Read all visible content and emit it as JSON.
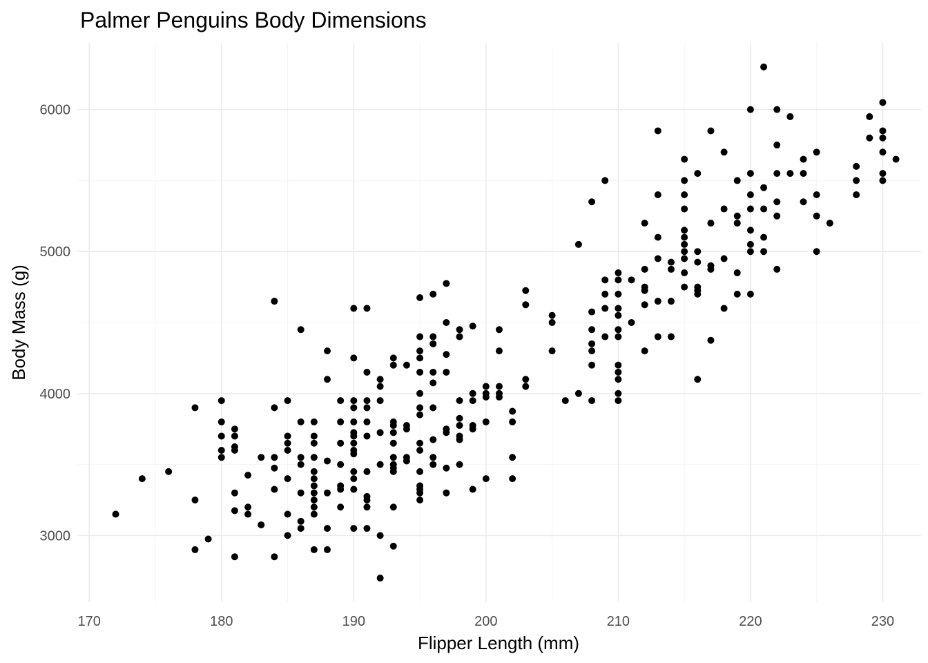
{
  "chart_data": {
    "type": "scatter",
    "title": "Palmer Penguins Body Dimensions",
    "xlabel": "Flipper Length (mm)",
    "ylabel": "Body Mass (g)",
    "xlim": [
      169.1,
      232.9
    ],
    "ylim": [
      2530,
      6470
    ],
    "x_ticks": [
      170,
      180,
      190,
      200,
      210,
      220,
      230
    ],
    "y_ticks": [
      3000,
      4000,
      5000,
      6000
    ],
    "x_tick_labels": [
      "170",
      "180",
      "190",
      "200",
      "210",
      "220",
      "230"
    ],
    "y_tick_labels": [
      "3000",
      "4000",
      "5000",
      "6000"
    ],
    "grid": true,
    "point_color": "#000000",
    "points": [
      [
        172,
        3150
      ],
      [
        174,
        3400
      ],
      [
        176,
        3450
      ],
      [
        178,
        3900
      ],
      [
        178,
        3250
      ],
      [
        178,
        2900
      ],
      [
        179,
        2975
      ],
      [
        180,
        3950
      ],
      [
        180,
        3800
      ],
      [
        180,
        3700
      ],
      [
        180,
        3600
      ],
      [
        180,
        3550
      ],
      [
        181,
        3750
      ],
      [
        181,
        3700
      ],
      [
        181,
        3625
      ],
      [
        181,
        3600
      ],
      [
        181,
        3300
      ],
      [
        181,
        3175
      ],
      [
        181,
        2850
      ],
      [
        182,
        3425
      ],
      [
        182,
        3200
      ],
      [
        182,
        3150
      ],
      [
        183,
        3550
      ],
      [
        183,
        3075
      ],
      [
        184,
        4650
      ],
      [
        184,
        3900
      ],
      [
        184,
        3550
      ],
      [
        184,
        3475
      ],
      [
        184,
        3325
      ],
      [
        184,
        2850
      ],
      [
        185,
        3950
      ],
      [
        185,
        3700
      ],
      [
        185,
        3650
      ],
      [
        185,
        3600
      ],
      [
        185,
        3400
      ],
      [
        185,
        3150
      ],
      [
        185,
        3000
      ],
      [
        186,
        4450
      ],
      [
        186,
        3800
      ],
      [
        186,
        3550
      ],
      [
        186,
        3500
      ],
      [
        186,
        3300
      ],
      [
        186,
        3100
      ],
      [
        186,
        3050
      ],
      [
        187,
        3800
      ],
      [
        187,
        3700
      ],
      [
        187,
        3650
      ],
      [
        187,
        3550
      ],
      [
        187,
        3450
      ],
      [
        187,
        3400
      ],
      [
        187,
        3350
      ],
      [
        187,
        3300
      ],
      [
        187,
        3250
      ],
      [
        187,
        3200
      ],
      [
        187,
        3150
      ],
      [
        187,
        2900
      ],
      [
        188,
        4300
      ],
      [
        188,
        4100
      ],
      [
        188,
        3525
      ],
      [
        188,
        3300
      ],
      [
        188,
        3050
      ],
      [
        188,
        2900
      ],
      [
        189,
        3950
      ],
      [
        189,
        3800
      ],
      [
        189,
        3650
      ],
      [
        189,
        3500
      ],
      [
        189,
        3350
      ],
      [
        189,
        3325
      ],
      [
        189,
        3200
      ],
      [
        190,
        4600
      ],
      [
        190,
        4250
      ],
      [
        190,
        3950
      ],
      [
        190,
        3900
      ],
      [
        190,
        3800
      ],
      [
        190,
        3725
      ],
      [
        190,
        3700
      ],
      [
        190,
        3650
      ],
      [
        190,
        3600
      ],
      [
        190,
        3575
      ],
      [
        190,
        3450
      ],
      [
        190,
        3400
      ],
      [
        190,
        3325
      ],
      [
        190,
        3050
      ],
      [
        191,
        4600
      ],
      [
        191,
        4150
      ],
      [
        191,
        3950
      ],
      [
        191,
        3900
      ],
      [
        191,
        3800
      ],
      [
        191,
        3700
      ],
      [
        191,
        3450
      ],
      [
        191,
        3275
      ],
      [
        191,
        3250
      ],
      [
        191,
        3200
      ],
      [
        191,
        3050
      ],
      [
        192,
        4100
      ],
      [
        192,
        4050
      ],
      [
        192,
        3950
      ],
      [
        192,
        3725
      ],
      [
        192,
        3500
      ],
      [
        192,
        3000
      ],
      [
        192,
        2700
      ],
      [
        193,
        4250
      ],
      [
        193,
        4200
      ],
      [
        193,
        3800
      ],
      [
        193,
        3775
      ],
      [
        193,
        3725
      ],
      [
        193,
        3650
      ],
      [
        193,
        3550
      ],
      [
        193,
        3500
      ],
      [
        193,
        3475
      ],
      [
        193,
        3450
      ],
      [
        193,
        3200
      ],
      [
        193,
        2925
      ],
      [
        194,
        4200
      ],
      [
        194,
        3775
      ],
      [
        194,
        3750
      ],
      [
        194,
        3550
      ],
      [
        194,
        3525
      ],
      [
        195,
        4675
      ],
      [
        195,
        4400
      ],
      [
        195,
        4300
      ],
      [
        195,
        4250
      ],
      [
        195,
        4150
      ],
      [
        195,
        4000
      ],
      [
        195,
        3900
      ],
      [
        195,
        3850
      ],
      [
        195,
        3650
      ],
      [
        195,
        3600
      ],
      [
        195,
        3450
      ],
      [
        195,
        3350
      ],
      [
        195,
        3325
      ],
      [
        195,
        3300
      ],
      [
        195,
        3250
      ],
      [
        196,
        4700
      ],
      [
        196,
        4400
      ],
      [
        196,
        4350
      ],
      [
        196,
        4150
      ],
      [
        196,
        4075
      ],
      [
        196,
        3900
      ],
      [
        196,
        3675
      ],
      [
        196,
        3550
      ],
      [
        196,
        3500
      ],
      [
        197,
        4775
      ],
      [
        197,
        4500
      ],
      [
        197,
        4275
      ],
      [
        197,
        4150
      ],
      [
        197,
        3750
      ],
      [
        197,
        3725
      ],
      [
        197,
        3475
      ],
      [
        197,
        3300
      ],
      [
        198,
        4450
      ],
      [
        198,
        4400
      ],
      [
        198,
        3950
      ],
      [
        198,
        3825
      ],
      [
        198,
        3775
      ],
      [
        198,
        3700
      ],
      [
        198,
        3675
      ],
      [
        198,
        3500
      ],
      [
        199,
        4475
      ],
      [
        199,
        4000
      ],
      [
        199,
        3950
      ],
      [
        199,
        3775
      ],
      [
        199,
        3750
      ],
      [
        199,
        3325
      ],
      [
        200,
        4050
      ],
      [
        200,
        4000
      ],
      [
        200,
        3975
      ],
      [
        200,
        3800
      ],
      [
        200,
        3400
      ],
      [
        201,
        4450
      ],
      [
        201,
        4300
      ],
      [
        201,
        4050
      ],
      [
        201,
        4000
      ],
      [
        201,
        3975
      ],
      [
        202,
        3875
      ],
      [
        202,
        3800
      ],
      [
        202,
        3550
      ],
      [
        202,
        3400
      ],
      [
        203,
        4725
      ],
      [
        203,
        4625
      ],
      [
        203,
        4100
      ],
      [
        203,
        4050
      ],
      [
        205,
        4550
      ],
      [
        205,
        4500
      ],
      [
        205,
        4300
      ],
      [
        206,
        3950
      ],
      [
        207,
        5050
      ],
      [
        207,
        4000
      ],
      [
        208,
        5350
      ],
      [
        208,
        4575
      ],
      [
        208,
        4450
      ],
      [
        208,
        4350
      ],
      [
        208,
        4300
      ],
      [
        208,
        4200
      ],
      [
        208,
        3950
      ],
      [
        209,
        5500
      ],
      [
        209,
        4800
      ],
      [
        209,
        4700
      ],
      [
        209,
        4600
      ],
      [
        209,
        4400
      ],
      [
        210,
        4850
      ],
      [
        210,
        4800
      ],
      [
        210,
        4700
      ],
      [
        210,
        4600
      ],
      [
        210,
        4550
      ],
      [
        210,
        4450
      ],
      [
        210,
        4400
      ],
      [
        210,
        4200
      ],
      [
        210,
        4150
      ],
      [
        210,
        4100
      ],
      [
        210,
        4000
      ],
      [
        210,
        3950
      ],
      [
        211,
        4800
      ],
      [
        211,
        4500
      ],
      [
        212,
        5200
      ],
      [
        212,
        4875
      ],
      [
        212,
        4750
      ],
      [
        212,
        4725
      ],
      [
        212,
        4625
      ],
      [
        212,
        4300
      ],
      [
        213,
        5850
      ],
      [
        213,
        5400
      ],
      [
        213,
        5100
      ],
      [
        213,
        4950
      ],
      [
        213,
        4650
      ],
      [
        213,
        4400
      ],
      [
        214,
        4925
      ],
      [
        214,
        4875
      ],
      [
        214,
        4650
      ],
      [
        214,
        4400
      ],
      [
        215,
        5650
      ],
      [
        215,
        5500
      ],
      [
        215,
        5400
      ],
      [
        215,
        5300
      ],
      [
        215,
        5150
      ],
      [
        215,
        5100
      ],
      [
        215,
        5050
      ],
      [
        215,
        5000
      ],
      [
        215,
        4950
      ],
      [
        215,
        4850
      ],
      [
        215,
        4750
      ],
      [
        216,
        5550
      ],
      [
        216,
        5000
      ],
      [
        216,
        4925
      ],
      [
        216,
        4750
      ],
      [
        216,
        4725
      ],
      [
        216,
        4700
      ],
      [
        216,
        4100
      ],
      [
        217,
        5850
      ],
      [
        217,
        5200
      ],
      [
        217,
        4900
      ],
      [
        217,
        4875
      ],
      [
        217,
        4375
      ],
      [
        218,
        5700
      ],
      [
        218,
        5300
      ],
      [
        218,
        4950
      ],
      [
        218,
        4600
      ],
      [
        219,
        5500
      ],
      [
        219,
        5250
      ],
      [
        219,
        5200
      ],
      [
        219,
        4850
      ],
      [
        219,
        4700
      ],
      [
        220,
        6000
      ],
      [
        220,
        5550
      ],
      [
        220,
        5400
      ],
      [
        220,
        5300
      ],
      [
        220,
        5150
      ],
      [
        220,
        5050
      ],
      [
        220,
        5000
      ],
      [
        220,
        4700
      ],
      [
        221,
        6300
      ],
      [
        221,
        5450
      ],
      [
        221,
        5300
      ],
      [
        221,
        5100
      ],
      [
        221,
        5000
      ],
      [
        222,
        6000
      ],
      [
        222,
        5750
      ],
      [
        222,
        5550
      ],
      [
        222,
        5350
      ],
      [
        222,
        5250
      ],
      [
        222,
        4875
      ],
      [
        223,
        5950
      ],
      [
        223,
        5550
      ],
      [
        224,
        5650
      ],
      [
        224,
        5550
      ],
      [
        224,
        5350
      ],
      [
        225,
        5700
      ],
      [
        225,
        5400
      ],
      [
        225,
        5250
      ],
      [
        225,
        5000
      ],
      [
        226,
        5200
      ],
      [
        228,
        5600
      ],
      [
        228,
        5500
      ],
      [
        228,
        5400
      ],
      [
        229,
        5950
      ],
      [
        229,
        5800
      ],
      [
        230,
        6050
      ],
      [
        230,
        5850
      ],
      [
        230,
        5800
      ],
      [
        230,
        5700
      ],
      [
        230,
        5550
      ],
      [
        230,
        5500
      ],
      [
        231,
        5650
      ]
    ]
  }
}
